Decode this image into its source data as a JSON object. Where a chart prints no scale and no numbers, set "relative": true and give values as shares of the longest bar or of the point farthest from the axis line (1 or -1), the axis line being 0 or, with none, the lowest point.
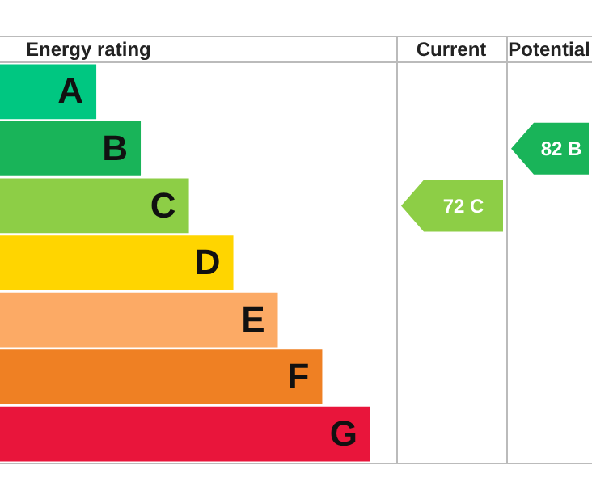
{
  "chart_data": {
    "type": "bar",
    "orientation": "horizontal",
    "relative": true,
    "title": "Energy rating",
    "categories": [
      "A",
      "B",
      "C",
      "D",
      "E",
      "F",
      "G"
    ],
    "values": [
      0.26,
      0.38,
      0.51,
      0.63,
      0.75,
      0.87,
      1
    ],
    "colors": [
      "#00c781",
      "#19b459",
      "#8dce46",
      "#ffd500",
      "#fcaa65",
      "#ef8023",
      "#e9153b"
    ],
    "annotations": [
      "Current",
      "Potential",
      "72 C",
      "82 B"
    ],
    "legend": false
  }
}
